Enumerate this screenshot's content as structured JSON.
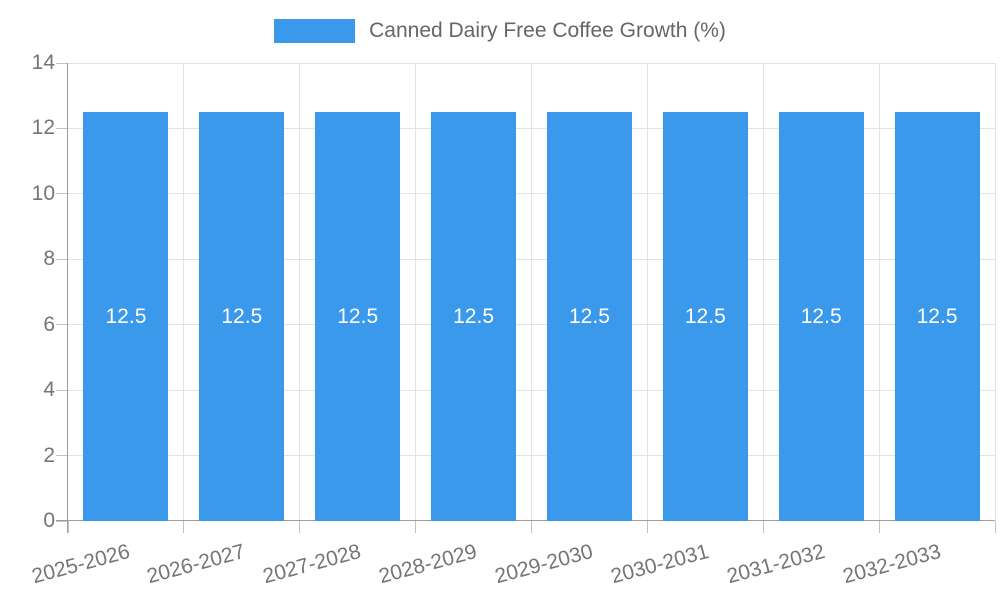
{
  "legend": {
    "items": [
      {
        "label": "Canned Dairy Free Coffee Growth (%)",
        "color": "#3B99EC"
      }
    ]
  },
  "colors": {
    "bar": "#3B99EC",
    "grid": "#E3E3E3",
    "axis": "#9E9E9E",
    "tick": "#C2C2C2",
    "tick_text": "#757575",
    "legend_text": "#666666",
    "value_text": "#FFFFFF",
    "background": "#FFFFFF"
  },
  "chart_data": {
    "type": "bar",
    "title": "Canned Dairy Free Coffee Growth (%)",
    "categories": [
      "2025-2026",
      "2026-2027",
      "2027-2028",
      "2028-2029",
      "2029-2030",
      "2030-2031",
      "2031-2032",
      "2032-2033"
    ],
    "series": [
      {
        "name": "Canned Dairy Free Coffee Growth (%)",
        "values": [
          12.5,
          12.5,
          12.5,
          12.5,
          12.5,
          12.5,
          12.5,
          12.5
        ]
      }
    ],
    "bar_value_labels": [
      "12.5",
      "12.5",
      "12.5",
      "12.5",
      "12.5",
      "12.5",
      "12.5",
      "12.5"
    ],
    "xlabel": "",
    "ylabel": "",
    "ylim": [
      0,
      14
    ],
    "ytick_step": 2,
    "yticks": [
      0,
      2,
      4,
      6,
      8,
      10,
      12,
      14
    ],
    "grid": true,
    "legend_position": "top-center",
    "x_tick_label_rotation_deg": -15
  }
}
